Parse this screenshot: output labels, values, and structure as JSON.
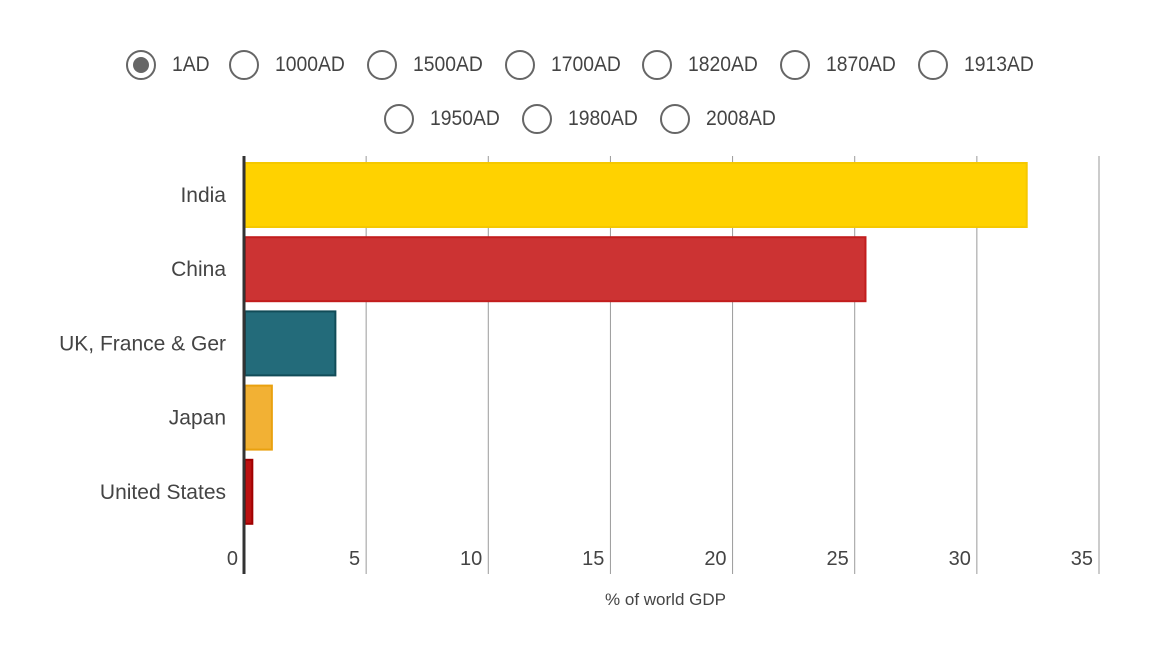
{
  "controls": {
    "options_row1": [
      "1AD",
      "1000AD",
      "1500AD",
      "1700AD",
      "1820AD",
      "1870AD",
      "1913AD"
    ],
    "options_row2": [
      "1950AD",
      "1980AD",
      "2008AD"
    ],
    "selected": "1AD"
  },
  "chart_data": {
    "type": "bar",
    "orientation": "horizontal",
    "categories": [
      "India",
      "China",
      "UK, France & Ger",
      "Japan",
      "United States"
    ],
    "values": [
      32.0,
      25.4,
      3.7,
      1.1,
      0.3
    ],
    "colors": [
      "#ffd200",
      "#cc3333",
      "#236b7a",
      "#f2b134",
      "#bb1111"
    ],
    "border_colors": [
      "#f5c800",
      "#c21d1d",
      "#114c58",
      "#e9a10f",
      "#a00000"
    ],
    "xlabel": "% of world GDP",
    "ylabel": "",
    "title": "",
    "xlim": [
      0,
      35
    ],
    "xticks": [
      0,
      5,
      10,
      15,
      20,
      25,
      30,
      35
    ],
    "grid": true,
    "legend": "none"
  }
}
